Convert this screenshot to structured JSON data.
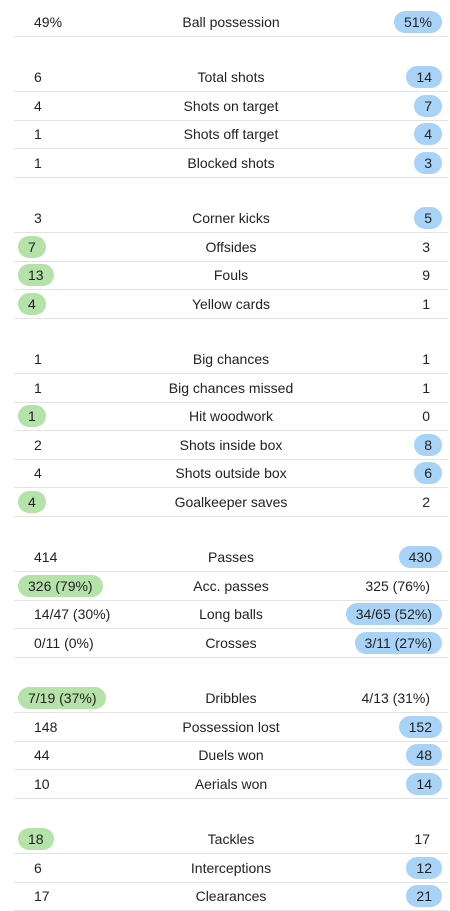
{
  "groups": [
    {
      "rows": [
        {
          "home": "49%",
          "label": "Ball possession",
          "away": "51%",
          "highlight": "away"
        }
      ]
    },
    {
      "rows": [
        {
          "home": "6",
          "label": "Total shots",
          "away": "14",
          "highlight": "away"
        },
        {
          "home": "4",
          "label": "Shots on target",
          "away": "7",
          "highlight": "away"
        },
        {
          "home": "1",
          "label": "Shots off target",
          "away": "4",
          "highlight": "away"
        },
        {
          "home": "1",
          "label": "Blocked shots",
          "away": "3",
          "highlight": "away"
        }
      ]
    },
    {
      "rows": [
        {
          "home": "3",
          "label": "Corner kicks",
          "away": "5",
          "highlight": "away"
        },
        {
          "home": "7",
          "label": "Offsides",
          "away": "3",
          "highlight": "home"
        },
        {
          "home": "13",
          "label": "Fouls",
          "away": "9",
          "highlight": "home"
        },
        {
          "home": "4",
          "label": "Yellow cards",
          "away": "1",
          "highlight": "home"
        }
      ]
    },
    {
      "rows": [
        {
          "home": "1",
          "label": "Big chances",
          "away": "1",
          "highlight": "none"
        },
        {
          "home": "1",
          "label": "Big chances missed",
          "away": "1",
          "highlight": "none"
        },
        {
          "home": "1",
          "label": "Hit woodwork",
          "away": "0",
          "highlight": "home"
        },
        {
          "home": "2",
          "label": "Shots inside box",
          "away": "8",
          "highlight": "away"
        },
        {
          "home": "4",
          "label": "Shots outside box",
          "away": "6",
          "highlight": "away"
        },
        {
          "home": "4",
          "label": "Goalkeeper saves",
          "away": "2",
          "highlight": "home"
        }
      ]
    },
    {
      "rows": [
        {
          "home": "414",
          "label": "Passes",
          "away": "430",
          "highlight": "away"
        },
        {
          "home": "326 (79%)",
          "label": "Acc. passes",
          "away": "325 (76%)",
          "highlight": "home"
        },
        {
          "home": "14/47 (30%)",
          "label": "Long balls",
          "away": "34/65 (52%)",
          "highlight": "away"
        },
        {
          "home": "0/11 (0%)",
          "label": "Crosses",
          "away": "3/11 (27%)",
          "highlight": "away"
        }
      ]
    },
    {
      "rows": [
        {
          "home": "7/19 (37%)",
          "label": "Dribbles",
          "away": "4/13 (31%)",
          "highlight": "home"
        },
        {
          "home": "148",
          "label": "Possession lost",
          "away": "152",
          "highlight": "away"
        },
        {
          "home": "44",
          "label": "Duels won",
          "away": "48",
          "highlight": "away"
        },
        {
          "home": "10",
          "label": "Aerials won",
          "away": "14",
          "highlight": "away"
        }
      ]
    },
    {
      "rows": [
        {
          "home": "18",
          "label": "Tackles",
          "away": "17",
          "highlight": "home"
        },
        {
          "home": "6",
          "label": "Interceptions",
          "away": "12",
          "highlight": "away"
        },
        {
          "home": "17",
          "label": "Clearances",
          "away": "21",
          "highlight": "away"
        }
      ]
    }
  ],
  "colors": {
    "home_highlight": "#b5e2a8",
    "away_highlight": "#a8d3f7",
    "divider": "#e3e3e3"
  }
}
